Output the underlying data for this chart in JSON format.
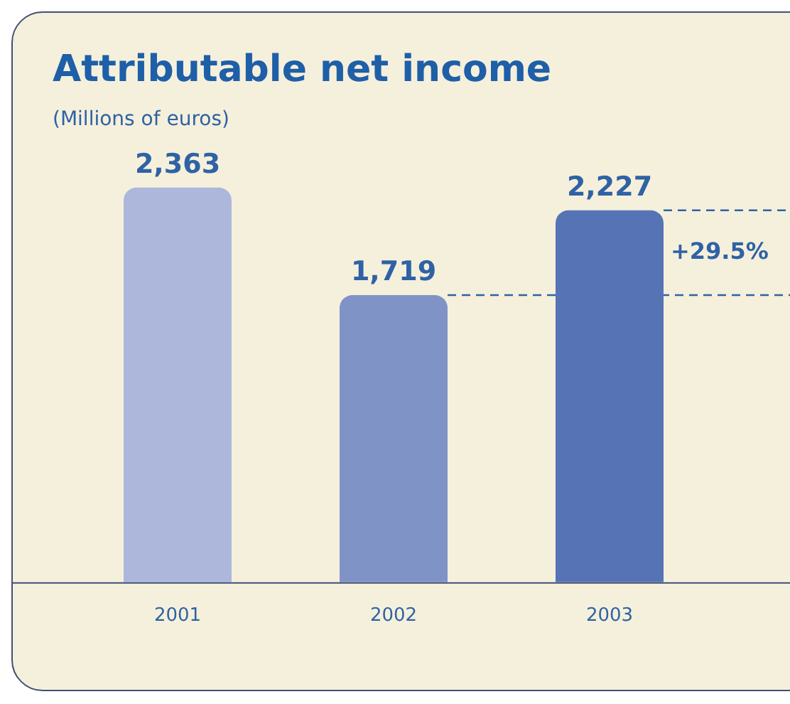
{
  "chart_data": {
    "type": "bar",
    "title": "Attributable net income",
    "subtitle": "(Millions of euros)",
    "categories": [
      "2001",
      "2002",
      "2003"
    ],
    "values": [
      2363,
      1719,
      2227
    ],
    "colors": [
      "#adb7dc",
      "#8093c7",
      "#5673b5"
    ],
    "value_labels": [
      "2,363",
      "1,719",
      "2,227"
    ],
    "annotations": [
      "+29.5%"
    ],
    "grid": false,
    "legend": false
  }
}
